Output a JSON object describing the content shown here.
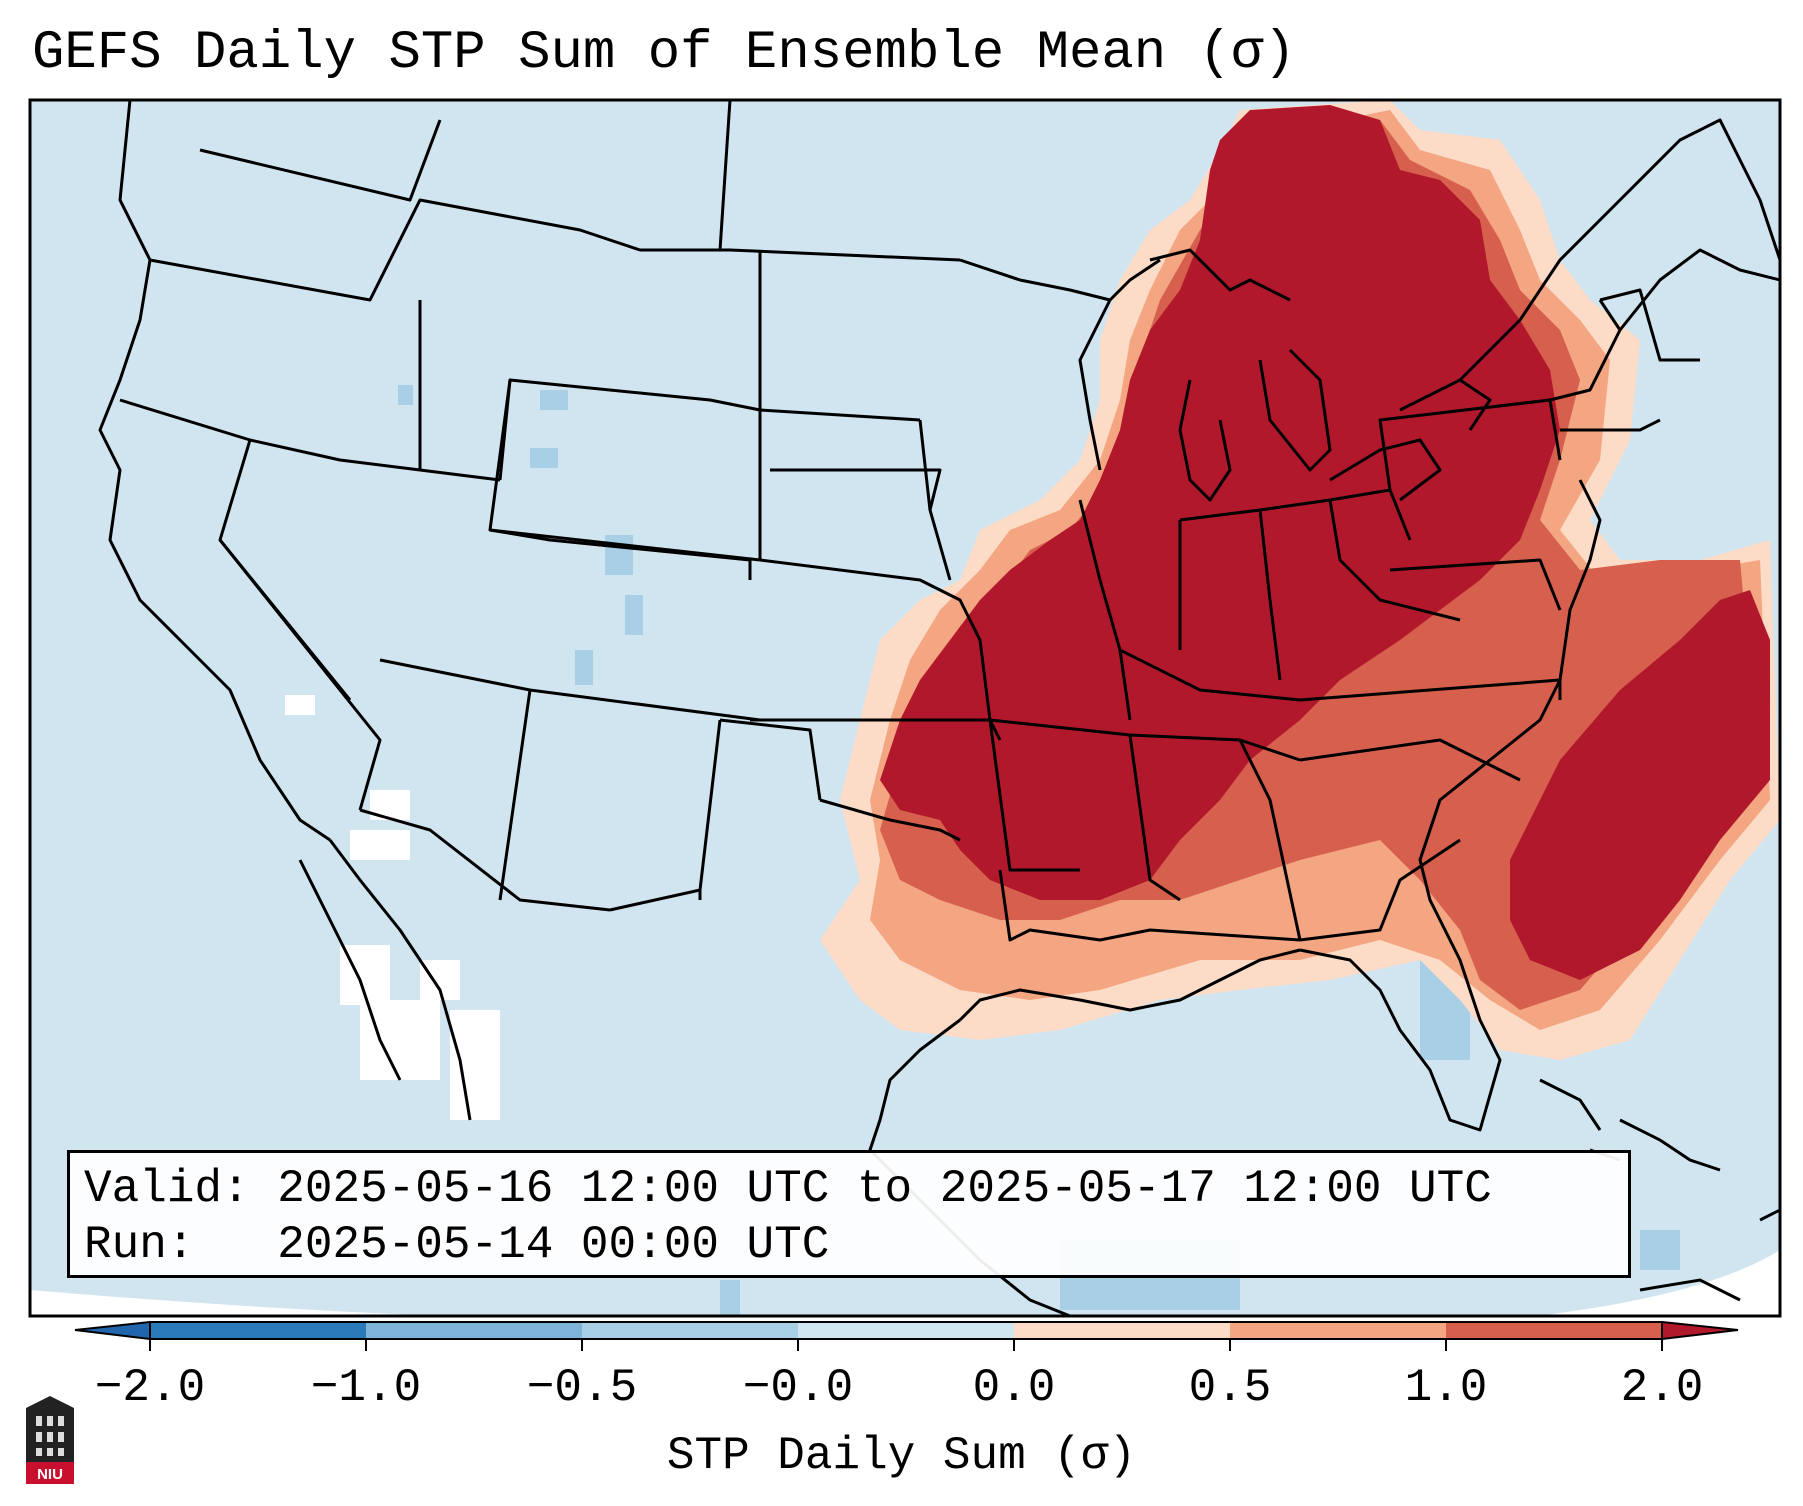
{
  "title": "GEFS Daily STP Sum of Ensemble Mean (σ)",
  "info": {
    "valid_label": "Valid:",
    "valid_range": "2025-05-16 12:00 UTC to 2025-05-17 12:00 UTC",
    "run_label": "Run:",
    "run_time": "2025-05-14 00:00 UTC"
  },
  "colorbar": {
    "label": "STP Daily Sum (σ)",
    "ticks": [
      "−2.0",
      "−1.0",
      "−0.5",
      "−0.0",
      "0.0",
      "0.5",
      "1.0",
      "2.0"
    ],
    "bin_colors": [
      "#2b7bba",
      "#7fb4d8",
      "#a8cfe5",
      "#d1e5f0",
      "#fcdbc7",
      "#f4a582",
      "#d6604d",
      "#b2182b"
    ],
    "extend_low_color": "#2166ac",
    "extend_high_color": "#b2182b"
  },
  "map": {
    "ocean_color": "#d1e5f0",
    "very_high_color": "#b2182b",
    "high_color": "#d6604d",
    "moderate_color": "#f4a582",
    "low_color": "#fcdbc7",
    "negative_color": "#a8cfe5",
    "blank_color": "#ffffff"
  },
  "logo_text": "NIU"
}
